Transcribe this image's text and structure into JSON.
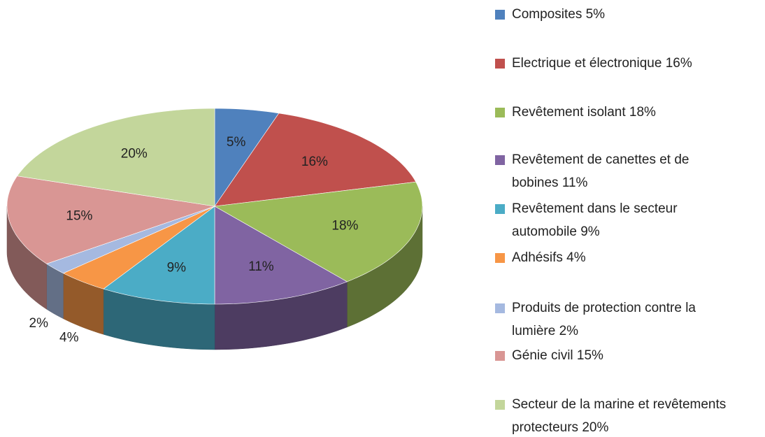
{
  "chart_data": {
    "type": "pie",
    "categories": [
      "Composites 5%",
      "Electrique et électronique 16%",
      "Revêtement isolant 18%",
      "Revêtement de canettes et de bobines 11%",
      "Revêtement dans le secteur automobile 9%",
      "Adhésifs 4%",
      "Produits de protection contre la lumière 2%",
      "Génie civil 15%",
      "Secteur de la marine et revêtements protecteurs 20%"
    ],
    "values": [
      5,
      16,
      18,
      11,
      9,
      4,
      2,
      15,
      20
    ],
    "value_labels": [
      "5%",
      "16%",
      "18%",
      "11%",
      "9%",
      "4%",
      "2%",
      "15%",
      "20%"
    ],
    "colors": [
      "#4f81bd",
      "#c0504d",
      "#9bbb59",
      "#8064a2",
      "#4bacc6",
      "#f79646",
      "#a5b9e0",
      "#d99694",
      "#c3d69b"
    ],
    "legend": "right"
  }
}
